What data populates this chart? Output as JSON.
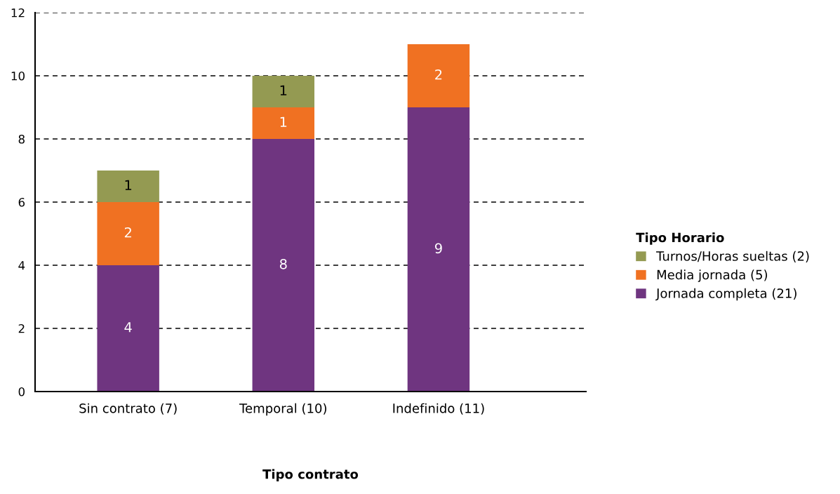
{
  "chart_data": {
    "type": "bar",
    "stacked": true,
    "xlabel": "Tipo contrato",
    "legend_title": "Tipo Horario",
    "categories": [
      "Sin contrato (7)",
      "Temporal (10)",
      "Indefinido (11)"
    ],
    "series": [
      {
        "name": "Jornada completa (21)",
        "color": "#6f3580",
        "values": [
          4,
          8,
          9
        ]
      },
      {
        "name": "Media jornada (5)",
        "color": "#f07122",
        "values": [
          2,
          1,
          2
        ]
      },
      {
        "name": "Turnos/Horas sueltas (2)",
        "color": "#949a52",
        "values": [
          1,
          1,
          null
        ]
      }
    ],
    "ylim": [
      0,
      12
    ],
    "yticks": [
      0,
      2,
      4,
      6,
      8,
      10,
      12
    ],
    "grid": "y",
    "legend": "right",
    "data_labels": true
  }
}
